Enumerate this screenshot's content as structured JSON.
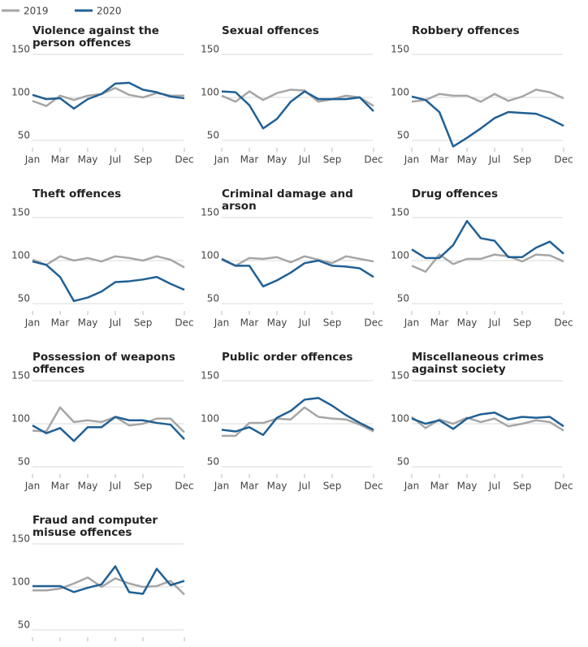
{
  "legend": [
    {
      "name": "2019",
      "color": "#a6a6a6"
    },
    {
      "name": "2020",
      "color": "#206095"
    }
  ],
  "chart_data": [
    {
      "type": "line",
      "title": "Violence against the person offences",
      "categories": [
        "Jan",
        null,
        "Mar",
        null,
        "May",
        null,
        "Jul",
        null,
        "Sep",
        null,
        null,
        "Dec"
      ],
      "ylim": [
        50,
        150
      ],
      "yticks": [
        50,
        100,
        150
      ],
      "series": [
        {
          "values": [
            96,
            90,
            102,
            97,
            102,
            104,
            111,
            103,
            100,
            105,
            102,
            102
          ]
        },
        {
          "values": [
            103,
            98,
            99,
            87,
            98,
            104,
            116,
            117,
            109,
            106,
            101,
            99
          ]
        }
      ]
    },
    {
      "type": "line",
      "title": "Sexual offences",
      "categories": [
        "Jan",
        null,
        "Mar",
        null,
        "May",
        null,
        "Jul",
        null,
        "Sep",
        null,
        null,
        "Dec"
      ],
      "ylim": [
        50,
        150
      ],
      "yticks": [
        50,
        100,
        150
      ],
      "series": [
        {
          "values": [
            102,
            95,
            107,
            97,
            105,
            109,
            108,
            95,
            98,
            102,
            100,
            90
          ]
        },
        {
          "values": [
            107,
            106,
            91,
            64,
            75,
            95,
            107,
            98,
            98,
            98,
            100,
            84
          ]
        }
      ]
    },
    {
      "type": "line",
      "title": "Robbery offences",
      "categories": [
        "Jan",
        null,
        "Mar",
        null,
        "May",
        null,
        "Jul",
        null,
        "Sep",
        null,
        null,
        "Dec"
      ],
      "ylim": [
        50,
        150
      ],
      "yticks": [
        50,
        100,
        150
      ],
      "series": [
        {
          "values": [
            95,
            97,
            104,
            102,
            102,
            95,
            104,
            96,
            101,
            109,
            106,
            99
          ]
        },
        {
          "values": [
            101,
            97,
            83,
            43,
            53,
            64,
            76,
            83,
            82,
            81,
            75,
            67
          ]
        }
      ]
    },
    {
      "type": "line",
      "title": "Theft offences",
      "categories": [
        "Jan",
        null,
        "Mar",
        null,
        "May",
        null,
        "Jul",
        null,
        "Sep",
        null,
        null,
        "Dec"
      ],
      "ylim": [
        50,
        150
      ],
      "yticks": [
        50,
        100,
        150
      ],
      "series": [
        {
          "values": [
            101,
            95,
            105,
            100,
            103,
            99,
            105,
            103,
            100,
            105,
            101,
            92
          ]
        },
        {
          "values": [
            99,
            95,
            81,
            53,
            57,
            64,
            75,
            76,
            78,
            81,
            73,
            66
          ]
        }
      ]
    },
    {
      "type": "line",
      "title": "Criminal damage and arson",
      "categories": [
        "Jan",
        null,
        "Mar",
        null,
        "May",
        null,
        "Jul",
        null,
        "Sep",
        null,
        null,
        "Dec"
      ],
      "ylim": [
        50,
        150
      ],
      "yticks": [
        50,
        100,
        150
      ],
      "series": [
        {
          "values": [
            101,
            94,
            103,
            102,
            104,
            98,
            105,
            101,
            97,
            105,
            102,
            99
          ]
        },
        {
          "values": [
            102,
            94,
            94,
            70,
            77,
            86,
            97,
            100,
            94,
            93,
            91,
            81
          ]
        }
      ]
    },
    {
      "type": "line",
      "title": "Drug offences",
      "categories": [
        "Jan",
        null,
        "Mar",
        null,
        "May",
        null,
        "Jul",
        null,
        "Sep",
        null,
        null,
        "Dec"
      ],
      "ylim": [
        50,
        150
      ],
      "yticks": [
        50,
        100,
        150
      ],
      "series": [
        {
          "values": [
            94,
            87,
            107,
            96,
            102,
            102,
            107,
            105,
            99,
            107,
            106,
            99
          ]
        },
        {
          "values": [
            113,
            103,
            103,
            118,
            146,
            126,
            123,
            104,
            104,
            115,
            122,
            108
          ]
        }
      ]
    },
    {
      "type": "line",
      "title": "Possession of weapons offences",
      "categories": [
        "Jan",
        null,
        "Mar",
        null,
        "May",
        null,
        "Jul",
        null,
        "Sep",
        null,
        null,
        "Dec"
      ],
      "ylim": [
        50,
        150
      ],
      "yticks": [
        50,
        100,
        150
      ],
      "series": [
        {
          "values": [
            92,
            91,
            119,
            102,
            104,
            102,
            108,
            98,
            100,
            106,
            106,
            90
          ]
        },
        {
          "values": [
            98,
            89,
            95,
            80,
            96,
            96,
            108,
            104,
            104,
            101,
            99,
            82
          ]
        }
      ]
    },
    {
      "type": "line",
      "title": "Public order offences",
      "categories": [
        "Jan",
        null,
        "Mar",
        null,
        "May",
        null,
        "Jul",
        null,
        "Sep",
        null,
        null,
        "Dec"
      ],
      "ylim": [
        50,
        150
      ],
      "yticks": [
        50,
        100,
        150
      ],
      "series": [
        {
          "values": [
            86,
            86,
            101,
            101,
            106,
            105,
            119,
            108,
            106,
            105,
            99,
            91
          ]
        },
        {
          "values": [
            93,
            91,
            96,
            87,
            107,
            115,
            128,
            130,
            121,
            110,
            101,
            93
          ]
        }
      ]
    },
    {
      "type": "line",
      "title": "Miscellaneous crimes against society",
      "categories": [
        "Jan",
        null,
        "Mar",
        null,
        "May",
        null,
        "Jul",
        null,
        "Sep",
        null,
        null,
        "Dec"
      ],
      "ylim": [
        50,
        150
      ],
      "yticks": [
        50,
        100,
        150
      ],
      "series": [
        {
          "values": [
            108,
            95,
            105,
            100,
            107,
            102,
            106,
            97,
            100,
            104,
            102,
            92
          ]
        },
        {
          "values": [
            106,
            100,
            104,
            94,
            106,
            111,
            113,
            105,
            108,
            107,
            108,
            97
          ]
        }
      ]
    },
    {
      "type": "line",
      "title": "Fraud and computer misuse offences",
      "categories": [
        null,
        null,
        null,
        null,
        null,
        null,
        null,
        null,
        null,
        null,
        null,
        null
      ],
      "ylim": [
        50,
        150
      ],
      "yticks": [
        50,
        100,
        150
      ],
      "series": [
        {
          "values": [
            96,
            96,
            98,
            104,
            111,
            100,
            110,
            104,
            100,
            101,
            107,
            91
          ]
        },
        {
          "values": [
            101,
            101,
            101,
            94,
            99,
            103,
            124,
            94,
            92,
            121,
            102,
            107
          ]
        }
      ]
    }
  ]
}
